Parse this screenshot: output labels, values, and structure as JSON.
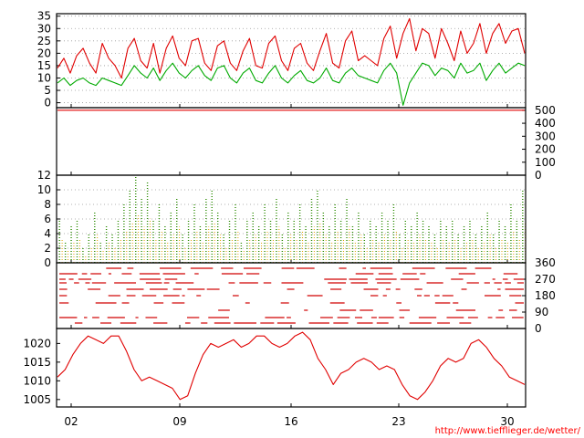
{
  "credit": "http://www.tiefflieger.de/wetter/",
  "chart_data": [
    {
      "type": "line",
      "panel": "temperature",
      "yticks": [
        0,
        5,
        10,
        15,
        20,
        25,
        30,
        35
      ],
      "ylim": [
        -2,
        36
      ],
      "xticks": [
        "02",
        "09",
        "16",
        "23",
        "30"
      ],
      "grid": true,
      "series": [
        {
          "color": "#e00000",
          "values": [
            14,
            18,
            12,
            19,
            22,
            16,
            12,
            24,
            18,
            15,
            10,
            22,
            26,
            17,
            14,
            24,
            12,
            22,
            27,
            18,
            15,
            25,
            26,
            16,
            13,
            23,
            25,
            16,
            13,
            21,
            26,
            15,
            14,
            24,
            27,
            17,
            13,
            22,
            24,
            16,
            13,
            21,
            28,
            16,
            14,
            25,
            29,
            17,
            19,
            17,
            15,
            26,
            31,
            18,
            28,
            34,
            21,
            30,
            28,
            18,
            30,
            24,
            17,
            29,
            20,
            24,
            32,
            20,
            28,
            32,
            24,
            29,
            30,
            20
          ]
        },
        {
          "color": "#00aa00",
          "values": [
            8,
            10,
            7,
            9,
            10,
            8,
            7,
            10,
            9,
            8,
            7,
            11,
            15,
            12,
            10,
            14,
            9,
            13,
            16,
            12,
            10,
            13,
            15,
            11,
            9,
            14,
            15,
            10,
            8,
            12,
            14,
            9,
            8,
            12,
            15,
            10,
            8,
            11,
            13,
            9,
            8,
            10,
            14,
            9,
            8,
            12,
            14,
            11,
            10,
            9,
            8,
            13,
            16,
            12,
            -1,
            8,
            12,
            16,
            15,
            11,
            14,
            13,
            10,
            16,
            12,
            13,
            16,
            9,
            13,
            16,
            12,
            14,
            16,
            15
          ]
        }
      ]
    },
    {
      "type": "line",
      "panel": "upper-right-scale",
      "yticks": [
        0,
        100,
        200,
        300,
        400,
        500
      ],
      "ylim": [
        0,
        520
      ],
      "xticks": [
        "02",
        "09",
        "16",
        "23",
        "30"
      ],
      "grid": false,
      "series": [
        {
          "color": "#e00000",
          "values": [
            500,
            500,
            500,
            500,
            500,
            500,
            500,
            500,
            500,
            500,
            500,
            500
          ]
        }
      ]
    },
    {
      "type": "bar",
      "panel": "wind-speed",
      "yticks": [
        0,
        2,
        4,
        6,
        8,
        10,
        12
      ],
      "ylim": [
        0,
        12
      ],
      "xticks": [
        "02",
        "09",
        "16",
        "23",
        "30"
      ],
      "grid": true,
      "series": [
        {
          "color": "#2a8a00",
          "values": [
            6,
            3,
            5,
            6,
            2,
            4,
            7,
            3,
            5,
            4,
            6,
            8,
            10,
            12,
            9,
            11,
            6,
            8,
            5,
            7,
            9,
            4,
            6,
            8,
            5,
            9,
            10,
            7,
            4,
            6,
            8,
            3,
            6,
            7,
            5,
            8,
            6,
            9,
            4,
            7,
            6,
            8,
            5,
            9,
            10,
            7,
            5,
            8,
            6,
            9,
            5,
            7,
            4,
            6,
            5,
            7,
            6,
            8,
            4,
            6,
            5,
            7,
            6,
            5,
            4,
            6,
            5,
            6,
            4,
            5,
            6,
            4,
            5,
            7,
            4,
            6,
            5,
            8,
            6,
            10
          ]
        }
      ]
    },
    {
      "type": "scatter",
      "panel": "wind-direction",
      "yticks": [
        0,
        90,
        180,
        270,
        360
      ],
      "ylim": [
        0,
        360
      ],
      "xticks": [
        "02",
        "09",
        "16",
        "23",
        "30"
      ],
      "grid": false,
      "series": [
        {
          "color": "#d00000",
          "bands": [
            30,
            60,
            100,
            140,
            180,
            215,
            250,
            270,
            300,
            330
          ],
          "density": [
            0.55,
            0.7,
            0.45,
            0.4,
            0.5,
            0.65,
            0.75,
            0.6,
            0.55,
            0.5
          ]
        }
      ]
    },
    {
      "type": "line",
      "panel": "pressure",
      "yticks": [
        1005,
        1010,
        1015,
        1020
      ],
      "ylim": [
        1003,
        1024
      ],
      "xticks": [
        "02",
        "09",
        "16",
        "23",
        "30"
      ],
      "grid": false,
      "series": [
        {
          "color": "#e00000",
          "values": [
            1011,
            1013,
            1017,
            1020,
            1022,
            1021,
            1020,
            1022,
            1022,
            1018,
            1013,
            1010,
            1011,
            1010,
            1009,
            1008,
            1005,
            1006,
            1012,
            1017,
            1020,
            1019,
            1020,
            1021,
            1019,
            1020,
            1022,
            1022,
            1020,
            1019,
            1020,
            1022,
            1023,
            1021,
            1016,
            1013,
            1009,
            1012,
            1013,
            1015,
            1016,
            1015,
            1013,
            1014,
            1013,
            1009,
            1006,
            1005,
            1007,
            1010,
            1014,
            1016,
            1015,
            1016,
            1020,
            1021,
            1019,
            1016,
            1014,
            1011,
            1010,
            1009
          ]
        }
      ]
    }
  ]
}
